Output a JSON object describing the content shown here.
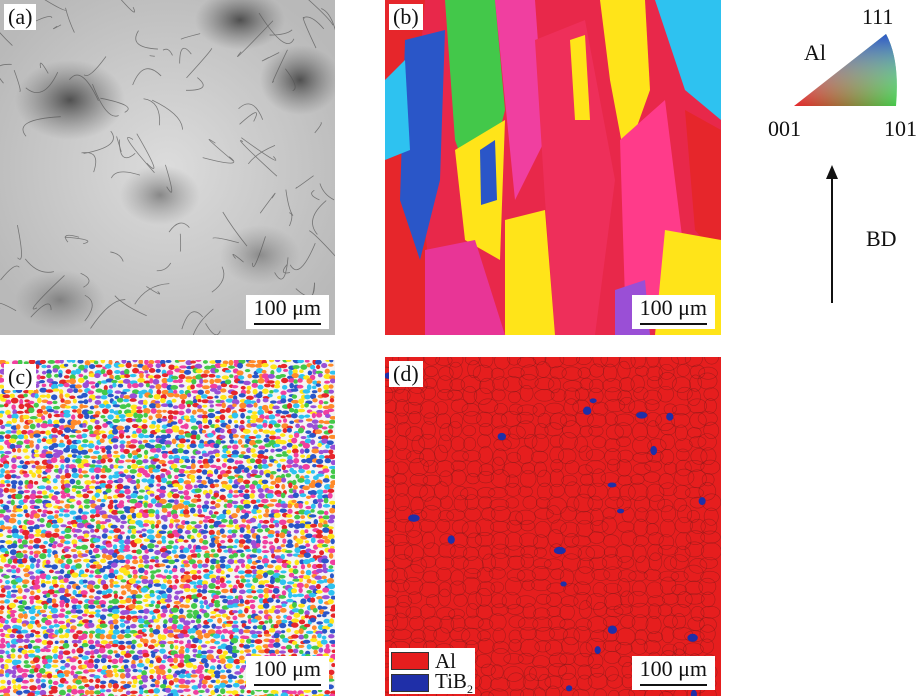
{
  "panels": {
    "a": {
      "tag": "(a)",
      "scale": "100 μm"
    },
    "b": {
      "tag": "(b)",
      "scale": "100 μm"
    },
    "c": {
      "tag": "(c)",
      "scale": "100 μm"
    },
    "d": {
      "tag": "(d)",
      "scale": "100 μm"
    }
  },
  "ipf": {
    "phase": "Al",
    "corner_111": "111",
    "corner_001": "001",
    "corner_101": "101"
  },
  "bd_label": "BD",
  "legend": [
    {
      "label": "Al",
      "color": "#e61e1e"
    },
    {
      "label": "TiB",
      "sub": "2",
      "color": "#1f2fa8"
    }
  ],
  "colors": {
    "grain_red": "#e61e1e",
    "tib2_blue": "#1f2fa8",
    "ipf_palette": [
      "#e6262b",
      "#f03fa0",
      "#ffe419",
      "#2ec2f0",
      "#2a56c8",
      "#43c84a",
      "#9a4fd6",
      "#ff8a2a"
    ]
  }
}
